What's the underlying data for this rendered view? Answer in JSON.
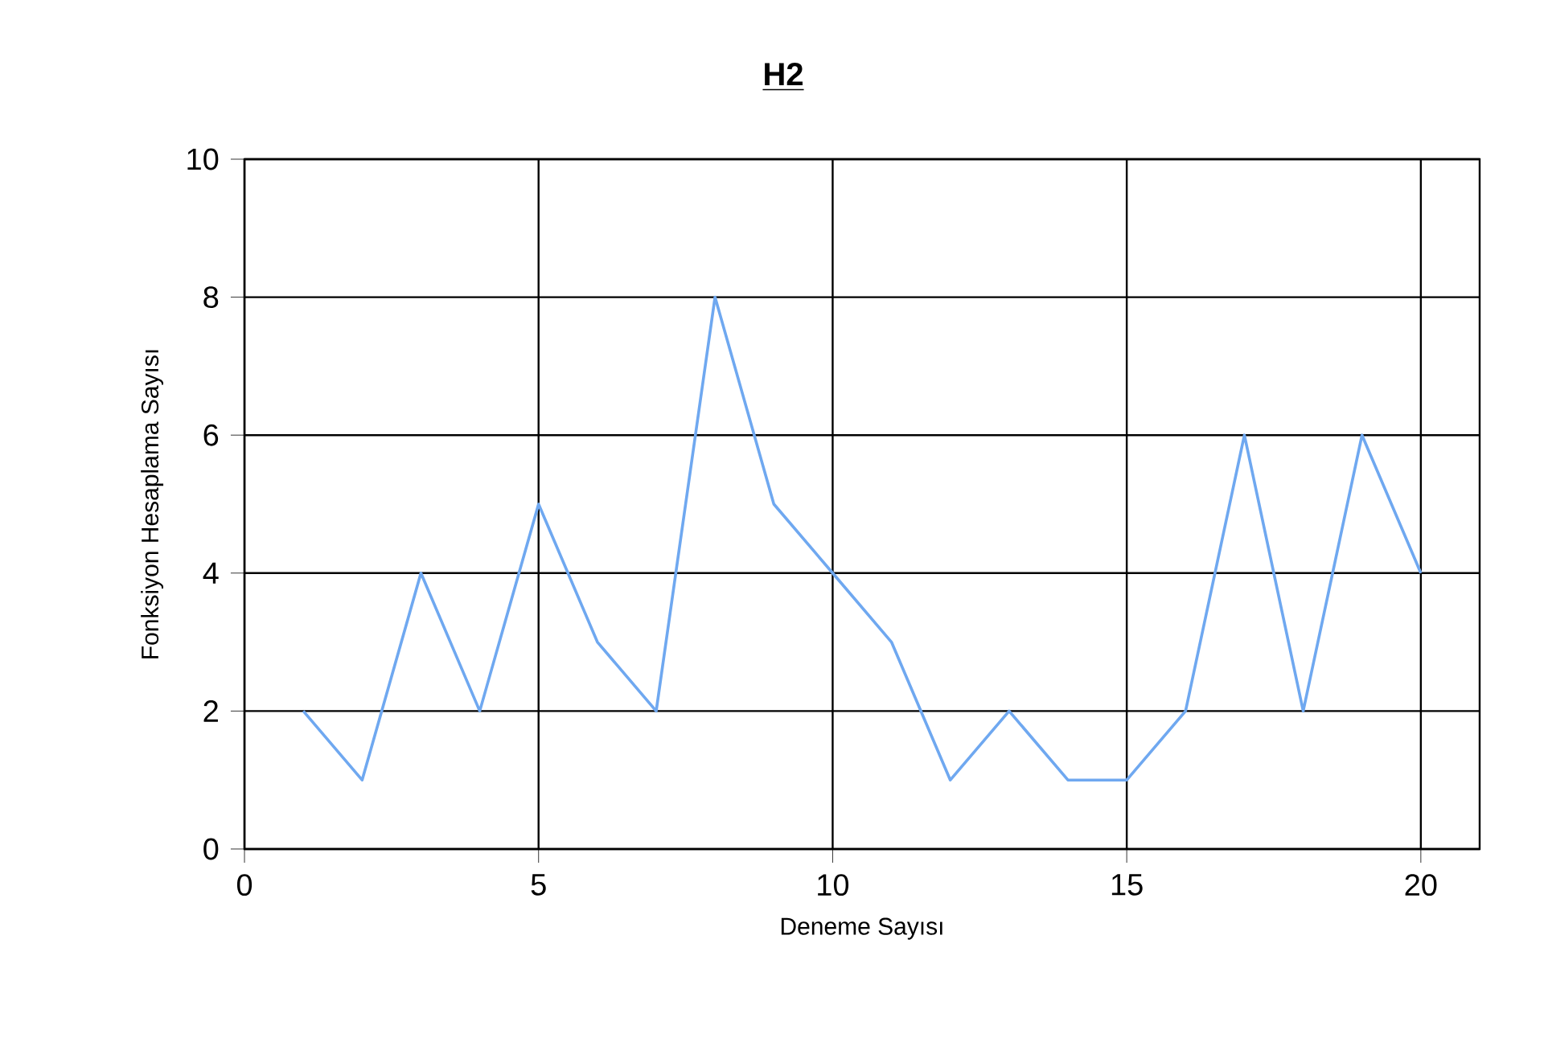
{
  "chart_data": {
    "type": "line",
    "title": "H2",
    "xlabel": "Deneme Sayısı",
    "ylabel": "Fonksiyon Hesaplama Sayısı",
    "x": [
      1,
      2,
      3,
      4,
      5,
      6,
      7,
      8,
      9,
      10,
      11,
      12,
      13,
      14,
      15,
      16,
      17,
      18,
      19,
      20
    ],
    "series": [
      {
        "color": "#6fa8f0",
        "values": [
          2,
          1,
          4,
          2,
          5,
          3,
          2,
          8,
          5,
          4,
          3,
          1,
          2,
          1,
          1,
          2,
          6,
          2,
          6,
          4
        ]
      }
    ],
    "xlim": [
      0,
      21
    ],
    "ylim": [
      0,
      10
    ],
    "xticks": [
      0,
      5,
      10,
      15,
      20
    ],
    "yticks": [
      0,
      2,
      4,
      6,
      8,
      10
    ],
    "grid": true,
    "marker": "none",
    "line_style": "solid"
  }
}
